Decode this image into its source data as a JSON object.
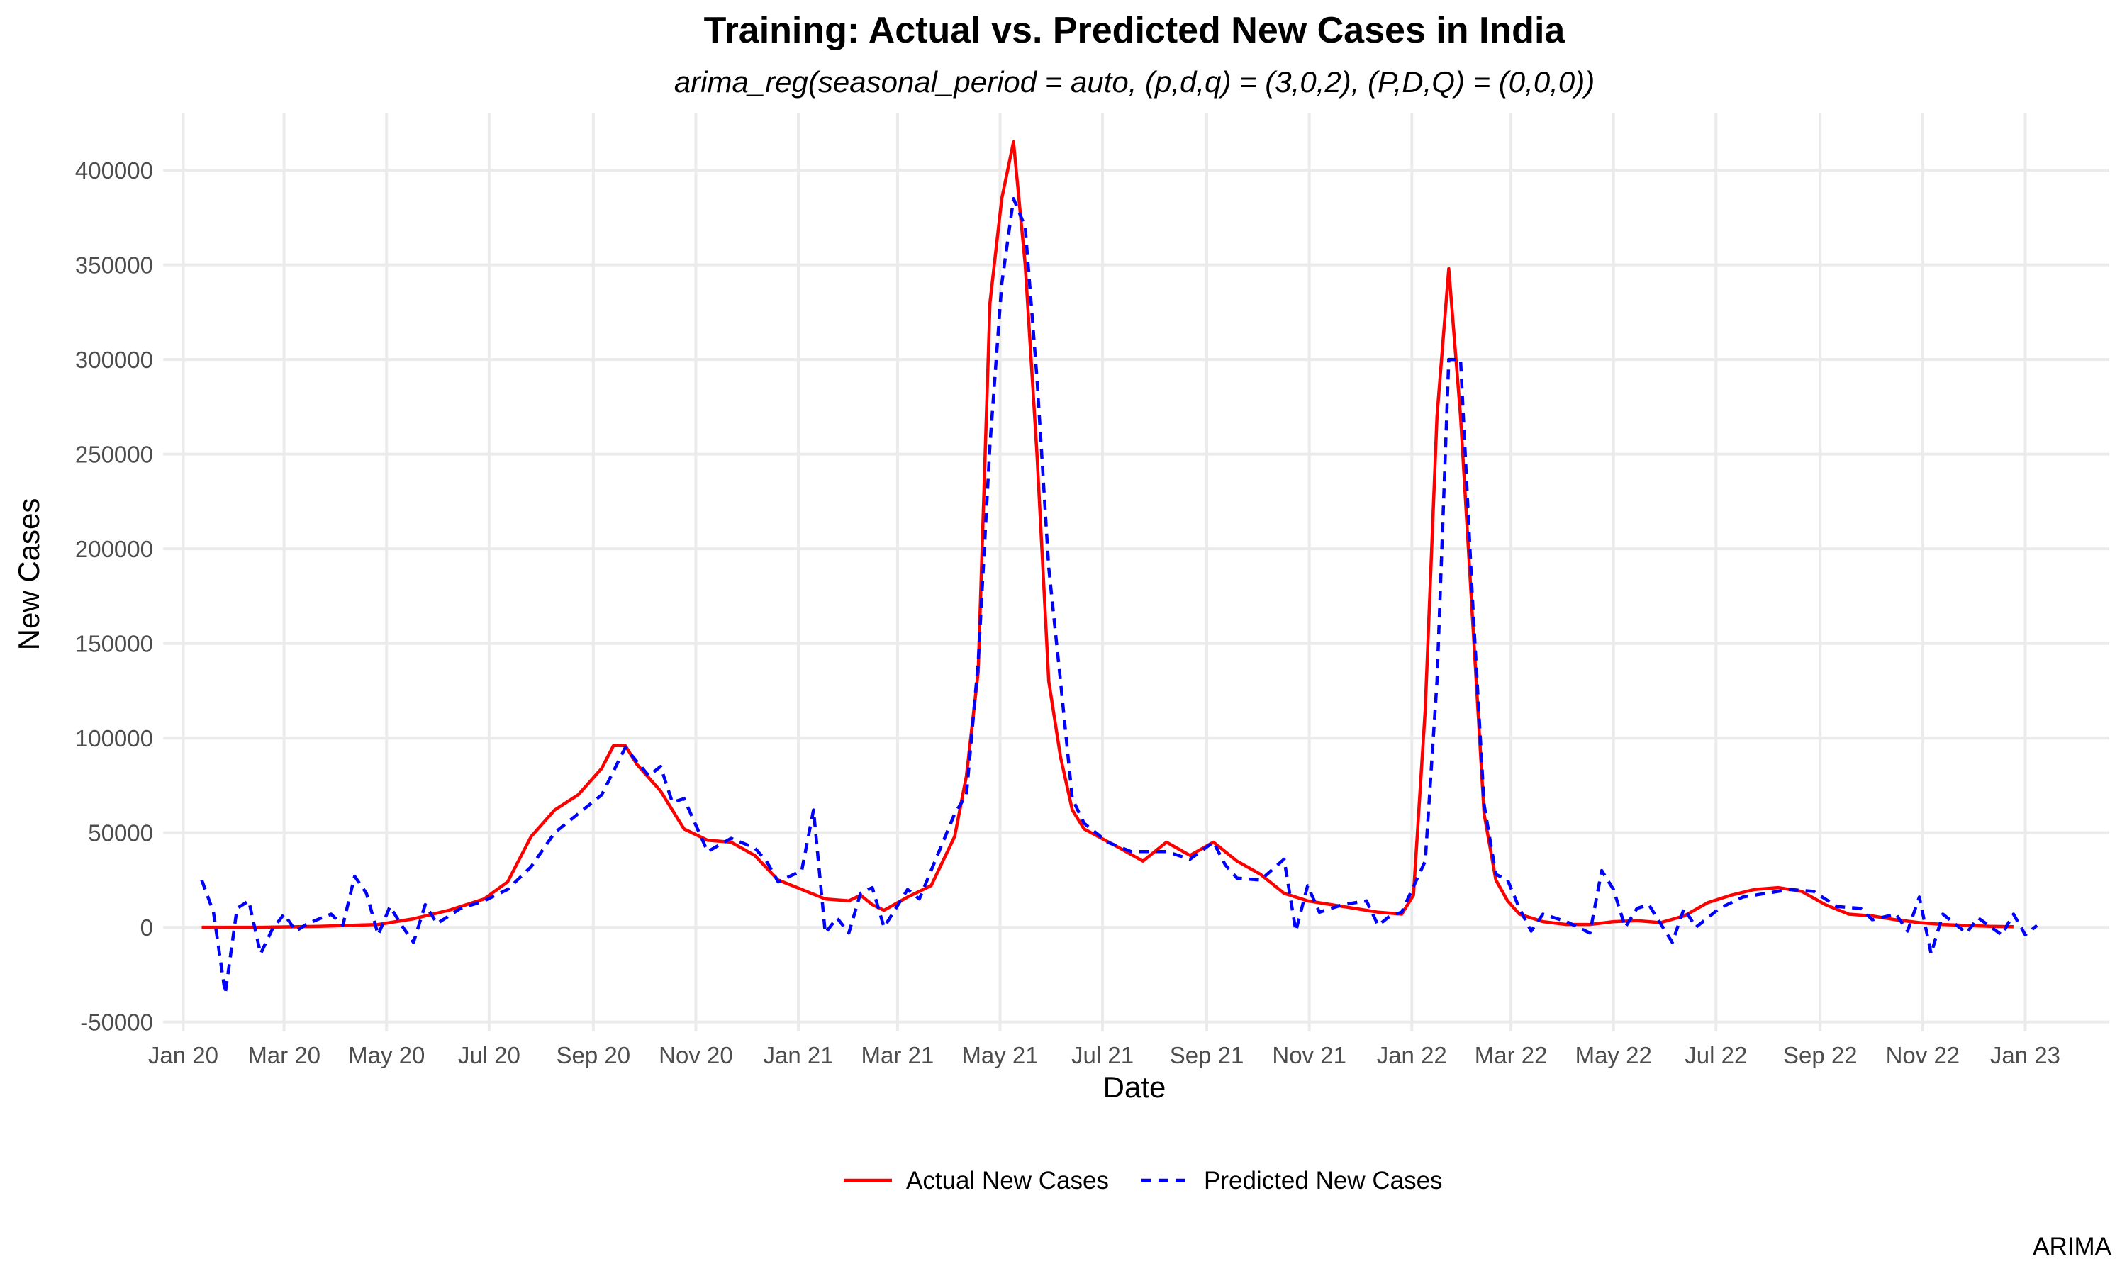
{
  "chart_data": {
    "type": "line",
    "title": "Training: Actual vs. Predicted New Cases in India",
    "subtitle": "arima_reg(seasonal_period = auto, (p,d,q) = (3,0,2), (P,D,Q) = (0,0,0))",
    "xlabel": "Date",
    "ylabel": "New Cases",
    "caption": "ARIMA",
    "xlim": [
      "2019-12-20",
      "2023-02-20"
    ],
    "ylim": [
      -55000,
      430000
    ],
    "x_ticks": [
      {
        "date": "2020-01-01",
        "label": "Jan 20"
      },
      {
        "date": "2020-03-01",
        "label": "Mar 20"
      },
      {
        "date": "2020-05-01",
        "label": "May 20"
      },
      {
        "date": "2020-07-01",
        "label": "Jul 20"
      },
      {
        "date": "2020-09-01",
        "label": "Sep 20"
      },
      {
        "date": "2020-11-01",
        "label": "Nov 20"
      },
      {
        "date": "2021-01-01",
        "label": "Jan 21"
      },
      {
        "date": "2021-03-01",
        "label": "Mar 21"
      },
      {
        "date": "2021-05-01",
        "label": "May 21"
      },
      {
        "date": "2021-07-01",
        "label": "Jul 21"
      },
      {
        "date": "2021-09-01",
        "label": "Sep 21"
      },
      {
        "date": "2021-11-01",
        "label": "Nov 21"
      },
      {
        "date": "2022-01-01",
        "label": "Jan 22"
      },
      {
        "date": "2022-03-01",
        "label": "Mar 22"
      },
      {
        "date": "2022-05-01",
        "label": "May 22"
      },
      {
        "date": "2022-07-01",
        "label": "Jul 22"
      },
      {
        "date": "2022-09-01",
        "label": "Sep 22"
      },
      {
        "date": "2022-11-01",
        "label": "Nov 22"
      },
      {
        "date": "2023-01-01",
        "label": "Jan 23"
      }
    ],
    "y_ticks": [
      {
        "value": -50000,
        "label": "-50000"
      },
      {
        "value": 0,
        "label": "0"
      },
      {
        "value": 50000,
        "label": "50000"
      },
      {
        "value": 100000,
        "label": "100000"
      },
      {
        "value": 150000,
        "label": "150000"
      },
      {
        "value": 200000,
        "label": "200000"
      },
      {
        "value": 250000,
        "label": "250000"
      },
      {
        "value": 300000,
        "label": "300000"
      },
      {
        "value": 350000,
        "label": "350000"
      },
      {
        "value": 400000,
        "label": "400000"
      }
    ],
    "grid": true,
    "legend": {
      "position": "bottom"
    },
    "series": [
      {
        "name": "Actual New Cases",
        "color": "#ff0000",
        "dash": "solid",
        "points": [
          [
            "2020-01-12",
            0
          ],
          [
            "2020-02-16",
            0
          ],
          [
            "2020-03-22",
            500
          ],
          [
            "2020-04-26",
            1500
          ],
          [
            "2020-05-17",
            4500
          ],
          [
            "2020-06-07",
            9000
          ],
          [
            "2020-06-28",
            15000
          ],
          [
            "2020-07-12",
            24000
          ],
          [
            "2020-07-26",
            48000
          ],
          [
            "2020-08-09",
            62000
          ],
          [
            "2020-08-23",
            70000
          ],
          [
            "2020-09-06",
            84000
          ],
          [
            "2020-09-13",
            96000
          ],
          [
            "2020-09-20",
            96000
          ],
          [
            "2020-09-27",
            86000
          ],
          [
            "2020-10-11",
            72000
          ],
          [
            "2020-10-25",
            52000
          ],
          [
            "2020-11-08",
            46000
          ],
          [
            "2020-11-22",
            45000
          ],
          [
            "2020-12-06",
            38000
          ],
          [
            "2020-12-20",
            25000
          ],
          [
            "2021-01-03",
            20000
          ],
          [
            "2021-01-17",
            15000
          ],
          [
            "2021-01-31",
            14000
          ],
          [
            "2021-02-07",
            17000
          ],
          [
            "2021-02-14",
            12000
          ],
          [
            "2021-02-21",
            9000
          ],
          [
            "2021-03-07",
            16000
          ],
          [
            "2021-03-21",
            22000
          ],
          [
            "2021-04-04",
            48000
          ],
          [
            "2021-04-11",
            80000
          ],
          [
            "2021-04-18",
            135000
          ],
          [
            "2021-04-25",
            330000
          ],
          [
            "2021-05-02",
            385000
          ],
          [
            "2021-05-09",
            415000
          ],
          [
            "2021-05-16",
            350000
          ],
          [
            "2021-05-23",
            250000
          ],
          [
            "2021-05-30",
            130000
          ],
          [
            "2021-06-06",
            90000
          ],
          [
            "2021-06-13",
            62000
          ],
          [
            "2021-06-20",
            52000
          ],
          [
            "2021-07-11",
            42000
          ],
          [
            "2021-07-25",
            35000
          ],
          [
            "2021-08-08",
            45000
          ],
          [
            "2021-08-22",
            38000
          ],
          [
            "2021-09-05",
            45000
          ],
          [
            "2021-09-19",
            35000
          ],
          [
            "2021-10-03",
            28000
          ],
          [
            "2021-10-17",
            18000
          ],
          [
            "2021-10-31",
            14000
          ],
          [
            "2021-11-14",
            12000
          ],
          [
            "2021-11-28",
            10000
          ],
          [
            "2021-12-12",
            8000
          ],
          [
            "2021-12-26",
            7000
          ],
          [
            "2022-01-02",
            17000
          ],
          [
            "2022-01-09",
            115000
          ],
          [
            "2022-01-16",
            270000
          ],
          [
            "2022-01-23",
            348000
          ],
          [
            "2022-01-30",
            270000
          ],
          [
            "2022-02-06",
            165000
          ],
          [
            "2022-02-13",
            60000
          ],
          [
            "2022-02-20",
            25000
          ],
          [
            "2022-02-27",
            14000
          ],
          [
            "2022-03-06",
            7000
          ],
          [
            "2022-03-20",
            3000
          ],
          [
            "2022-04-03",
            1500
          ],
          [
            "2022-04-17",
            1500
          ],
          [
            "2022-05-01",
            3000
          ],
          [
            "2022-05-15",
            3500
          ],
          [
            "2022-05-29",
            2500
          ],
          [
            "2022-06-12",
            6000
          ],
          [
            "2022-06-26",
            13000
          ],
          [
            "2022-07-10",
            17000
          ],
          [
            "2022-07-24",
            20000
          ],
          [
            "2022-08-07",
            21000
          ],
          [
            "2022-08-21",
            19000
          ],
          [
            "2022-09-04",
            12000
          ],
          [
            "2022-09-18",
            7000
          ],
          [
            "2022-10-02",
            6000
          ],
          [
            "2022-10-16",
            4000
          ],
          [
            "2022-10-30",
            2500
          ],
          [
            "2022-11-13",
            1500
          ],
          [
            "2022-12-11",
            500
          ],
          [
            "2022-12-25",
            300
          ]
        ]
      },
      {
        "name": "Predicted New Cases",
        "color": "#0000ff",
        "dash": "dashed",
        "points": [
          [
            "2020-01-12",
            25000
          ],
          [
            "2020-01-19",
            8000
          ],
          [
            "2020-01-26",
            -35000
          ],
          [
            "2020-02-02",
            10000
          ],
          [
            "2020-02-09",
            14000
          ],
          [
            "2020-02-16",
            -14000
          ],
          [
            "2020-02-23",
            -1000
          ],
          [
            "2020-03-01",
            7000
          ],
          [
            "2020-03-08",
            -2000
          ],
          [
            "2020-03-15",
            2000
          ],
          [
            "2020-03-29",
            7000
          ],
          [
            "2020-04-05",
            1000
          ],
          [
            "2020-04-12",
            27000
          ],
          [
            "2020-04-19",
            18000
          ],
          [
            "2020-04-26",
            -4000
          ],
          [
            "2020-05-03",
            11000
          ],
          [
            "2020-05-10",
            1000
          ],
          [
            "2020-05-17",
            -8000
          ],
          [
            "2020-05-24",
            12000
          ],
          [
            "2020-05-31",
            2000
          ],
          [
            "2020-06-14",
            10000
          ],
          [
            "2020-06-28",
            14000
          ],
          [
            "2020-07-12",
            20000
          ],
          [
            "2020-07-26",
            32000
          ],
          [
            "2020-08-09",
            50000
          ],
          [
            "2020-08-23",
            60000
          ],
          [
            "2020-09-06",
            70000
          ],
          [
            "2020-09-20",
            95000
          ],
          [
            "2020-10-04",
            80000
          ],
          [
            "2020-10-11",
            85000
          ],
          [
            "2020-10-18",
            66000
          ],
          [
            "2020-10-25",
            68000
          ],
          [
            "2020-11-08",
            40000
          ],
          [
            "2020-11-22",
            47000
          ],
          [
            "2020-12-06",
            42000
          ],
          [
            "2020-12-13",
            35000
          ],
          [
            "2020-12-20",
            24000
          ],
          [
            "2021-01-03",
            30000
          ],
          [
            "2021-01-10",
            62000
          ],
          [
            "2021-01-17",
            -3000
          ],
          [
            "2021-01-24",
            5000
          ],
          [
            "2021-01-31",
            -3000
          ],
          [
            "2021-02-07",
            18000
          ],
          [
            "2021-02-14",
            21000
          ],
          [
            "2021-02-21",
            0
          ],
          [
            "2021-03-07",
            20000
          ],
          [
            "2021-03-14",
            15000
          ],
          [
            "2021-03-21",
            30000
          ],
          [
            "2021-04-04",
            60000
          ],
          [
            "2021-04-11",
            70000
          ],
          [
            "2021-04-18",
            140000
          ],
          [
            "2021-04-25",
            255000
          ],
          [
            "2021-05-02",
            340000
          ],
          [
            "2021-05-09",
            385000
          ],
          [
            "2021-05-16",
            370000
          ],
          [
            "2021-05-23",
            290000
          ],
          [
            "2021-05-30",
            190000
          ],
          [
            "2021-06-06",
            130000
          ],
          [
            "2021-06-13",
            68000
          ],
          [
            "2021-06-20",
            55000
          ],
          [
            "2021-07-04",
            45000
          ],
          [
            "2021-07-18",
            40000
          ],
          [
            "2021-08-08",
            40000
          ],
          [
            "2021-08-22",
            36000
          ],
          [
            "2021-09-05",
            45000
          ],
          [
            "2021-09-12",
            33000
          ],
          [
            "2021-09-19",
            26000
          ],
          [
            "2021-10-03",
            25000
          ],
          [
            "2021-10-17",
            36000
          ],
          [
            "2021-10-24",
            -2000
          ],
          [
            "2021-10-31",
            22000
          ],
          [
            "2021-11-07",
            8000
          ],
          [
            "2021-11-21",
            12000
          ],
          [
            "2021-12-05",
            14000
          ],
          [
            "2021-12-12",
            1000
          ],
          [
            "2021-12-19",
            6000
          ],
          [
            "2021-12-26",
            8000
          ],
          [
            "2022-01-09",
            35000
          ],
          [
            "2022-01-16",
            130000
          ],
          [
            "2022-01-23",
            300000
          ],
          [
            "2022-01-30",
            300000
          ],
          [
            "2022-02-06",
            175000
          ],
          [
            "2022-02-13",
            65000
          ],
          [
            "2022-02-20",
            28000
          ],
          [
            "2022-02-27",
            25000
          ],
          [
            "2022-03-06",
            10000
          ],
          [
            "2022-03-13",
            -2000
          ],
          [
            "2022-03-20",
            7000
          ],
          [
            "2022-04-03",
            3000
          ],
          [
            "2022-04-17",
            -3000
          ],
          [
            "2022-04-24",
            30000
          ],
          [
            "2022-05-01",
            20000
          ],
          [
            "2022-05-08",
            0
          ],
          [
            "2022-05-15",
            10000
          ],
          [
            "2022-05-22",
            12000
          ],
          [
            "2022-06-05",
            -8000
          ],
          [
            "2022-06-12",
            10000
          ],
          [
            "2022-06-19",
            0
          ],
          [
            "2022-07-03",
            10000
          ],
          [
            "2022-07-17",
            16000
          ],
          [
            "2022-07-31",
            18000
          ],
          [
            "2022-08-14",
            20000
          ],
          [
            "2022-08-28",
            19000
          ],
          [
            "2022-09-11",
            11000
          ],
          [
            "2022-09-25",
            10000
          ],
          [
            "2022-10-02",
            4000
          ],
          [
            "2022-10-16",
            7000
          ],
          [
            "2022-10-23",
            -2000
          ],
          [
            "2022-10-30",
            16000
          ],
          [
            "2022-11-06",
            -14000
          ],
          [
            "2022-11-13",
            7000
          ],
          [
            "2022-11-27",
            -3000
          ],
          [
            "2022-12-04",
            5000
          ],
          [
            "2022-12-18",
            -4000
          ],
          [
            "2022-12-25",
            7000
          ],
          [
            "2023-01-01",
            -4000
          ],
          [
            "2023-01-08",
            1000
          ]
        ]
      }
    ]
  }
}
